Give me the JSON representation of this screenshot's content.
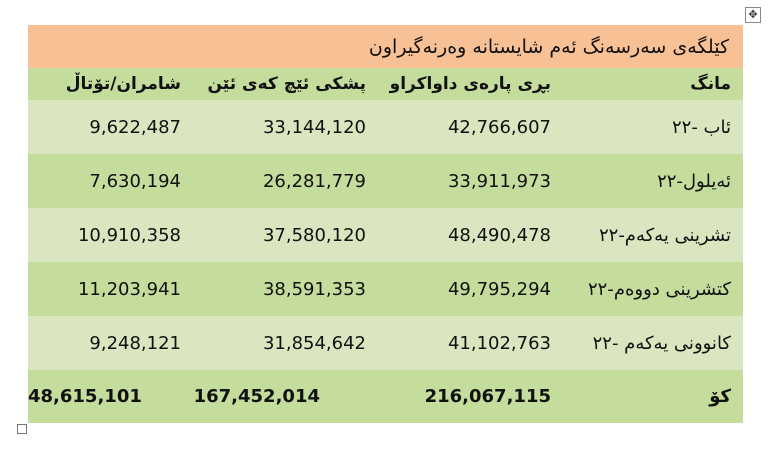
{
  "table": {
    "title": "کێلگەی سەرسەنگ ئەم شایستانە وەرنەگیراون",
    "headers": [
      "مانگ",
      "بڕی پارەی داواکراو",
      "پشکی ئێچ کەی ئێن",
      "شامران/تۆتاڵ"
    ],
    "rows": [
      {
        "month": "ئاب -٢٢",
        "requested": "42,766,607",
        "hkn_share": "33,144,120",
        "shamran_total": "9,622,487"
      },
      {
        "month": "ئەیلول-٢٢",
        "requested": "33,911,973",
        "hkn_share": "26,281,779",
        "shamran_total": "7,630,194"
      },
      {
        "month": "تشرینی یەکەم-٢٢",
        "requested": "48,490,478",
        "hkn_share": "37,580,120",
        "shamran_total": "10,910,358"
      },
      {
        "month": "کتشرینی دووەم-٢٢",
        "requested": "49,795,294",
        "hkn_share": "38,591,353",
        "shamran_total": "11,203,941"
      },
      {
        "month": "کانوونی یەکەم -٢٢",
        "requested": "41,102,763",
        "hkn_share": "31,854,642",
        "shamran_total": "9,248,121"
      }
    ],
    "total": {
      "label": "کۆ",
      "requested": "216,067,115",
      "hkn_share": "167,452,014",
      "shamran_total": "48,615,101"
    }
  },
  "colors": {
    "title_bg": "#f8c095",
    "header_bg": "#c4dc9c",
    "row_light": "#d9e6c0",
    "row_dark": "#c4dc9c"
  },
  "icons": {
    "move_handle": "move-arrows-icon",
    "resize_handle": "resize-square-icon"
  }
}
